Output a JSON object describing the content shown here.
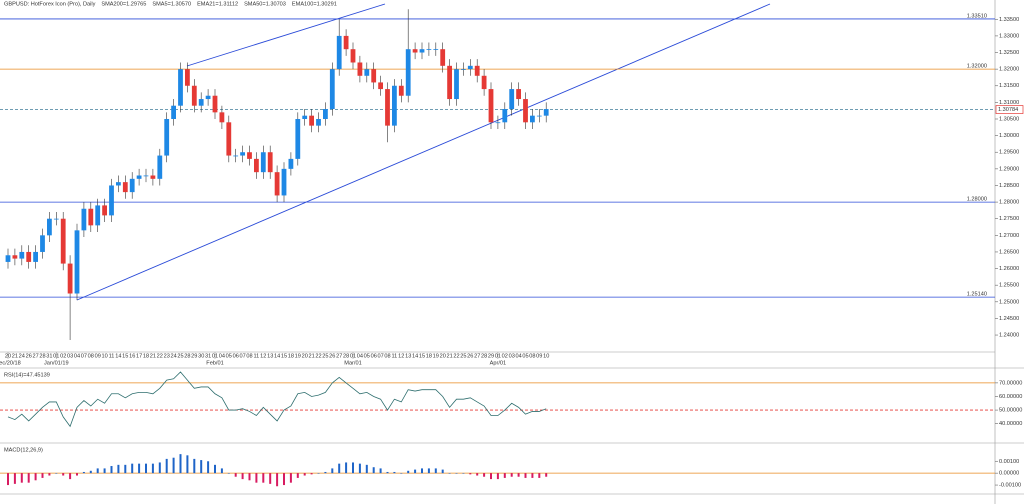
{
  "chart_data": [
    {
      "type": "candlestick",
      "title": "GBPUSD: HotForex Icon (Pro), Daily",
      "header_items": [
        {
          "text": "SMA200=1.29765",
          "color": "#e0245e"
        },
        {
          "text": "SMA5=1.30570",
          "color": "#333333"
        },
        {
          "text": "EMA21=1.31112",
          "color": "#3aa7d8"
        },
        {
          "text": "SMA50=1.30703",
          "color": "#e8891f"
        },
        {
          "text": "EMA100=1.30291",
          "color": "#2f4f2f"
        }
      ],
      "categories": [
        "20",
        "21",
        "24",
        "26",
        "27",
        "28",
        "31",
        "01",
        "02",
        "03",
        "04",
        "07",
        "08",
        "09",
        "10",
        "11",
        "14",
        "15",
        "16",
        "17",
        "18",
        "21",
        "22",
        "23",
        "24",
        "25",
        "28",
        "29",
        "30",
        "31",
        "01",
        "04",
        "05",
        "06",
        "07",
        "08",
        "11",
        "12",
        "13",
        "14",
        "15",
        "18",
        "19",
        "20",
        "21",
        "22",
        "25",
        "26",
        "27",
        "28",
        "01",
        "04",
        "05",
        "06",
        "07",
        "08",
        "11",
        "12",
        "13",
        "14",
        "15",
        "18",
        "19",
        "20",
        "21",
        "22",
        "25",
        "26",
        "27",
        "28",
        "29",
        "01",
        "02",
        "03",
        "04",
        "05",
        "08",
        "09",
        "10"
      ],
      "period_labels": [
        "Dec/20/18",
        null,
        null,
        null,
        null,
        null,
        null,
        "Jan/01/19",
        null,
        null,
        null,
        null,
        null,
        null,
        null,
        null,
        null,
        null,
        null,
        null,
        null,
        null,
        null,
        null,
        null,
        null,
        null,
        null,
        null,
        null,
        "Feb/01",
        null,
        null,
        null,
        null,
        null,
        null,
        null,
        null,
        null,
        null,
        null,
        null,
        null,
        null,
        null,
        null,
        null,
        null,
        null,
        "Mar/01",
        null,
        null,
        null,
        null,
        null,
        null,
        null,
        null,
        null,
        null,
        null,
        null,
        null,
        null,
        null,
        null,
        null,
        null,
        null,
        null,
        "Apr/01",
        null,
        null,
        null,
        null,
        null,
        null,
        null
      ],
      "open": [
        1.262,
        1.264,
        1.263,
        1.265,
        1.262,
        1.265,
        1.27,
        1.275,
        1.275,
        1.2615,
        1.2525,
        1.2715,
        1.278,
        1.273,
        1.279,
        1.276,
        1.285,
        1.286,
        1.283,
        1.287,
        1.288,
        1.288,
        1.287,
        1.294,
        1.305,
        1.309,
        1.32,
        1.315,
        1.309,
        1.311,
        1.312,
        1.307,
        1.304,
        1.294,
        1.294,
        1.295,
        1.293,
        1.289,
        1.295,
        1.289,
        1.282,
        1.29,
        1.293,
        1.305,
        1.306,
        1.303,
        1.305,
        1.308,
        1.32,
        1.33,
        1.326,
        1.322,
        1.318,
        1.32,
        1.316,
        1.314,
        1.303,
        1.315,
        1.312,
        1.326,
        1.325,
        1.326,
        1.326,
        1.326,
        1.321,
        1.311,
        1.32,
        1.32,
        1.321,
        1.318,
        1.314,
        1.304,
        1.304,
        1.308,
        1.314,
        1.311,
        1.304,
        1.306,
        1.306
      ],
      "high": [
        1.266,
        1.266,
        1.267,
        1.267,
        1.267,
        1.272,
        1.277,
        1.277,
        1.277,
        1.264,
        1.2735,
        1.28,
        1.28,
        1.281,
        1.281,
        1.287,
        1.288,
        1.288,
        1.289,
        1.29,
        1.29,
        1.29,
        1.296,
        1.307,
        1.311,
        1.322,
        1.322,
        1.317,
        1.313,
        1.314,
        1.314,
        1.309,
        1.306,
        1.296,
        1.297,
        1.297,
        1.295,
        1.297,
        1.297,
        1.291,
        1.292,
        1.295,
        1.307,
        1.308,
        1.308,
        1.307,
        1.31,
        1.322,
        1.335,
        1.332,
        1.328,
        1.324,
        1.322,
        1.322,
        1.318,
        1.316,
        1.317,
        1.317,
        1.338,
        1.328,
        1.328,
        1.328,
        1.328,
        1.328,
        1.323,
        1.322,
        1.322,
        1.323,
        1.323,
        1.32,
        1.316,
        1.306,
        1.31,
        1.316,
        1.316,
        1.313,
        1.308,
        1.308,
        1.31
      ],
      "low": [
        1.26,
        1.261,
        1.261,
        1.26,
        1.26,
        1.263,
        1.268,
        1.273,
        1.2595,
        1.2385,
        1.2505,
        1.2695,
        1.271,
        1.271,
        1.274,
        1.274,
        1.283,
        1.281,
        1.281,
        1.285,
        1.286,
        1.285,
        1.285,
        1.292,
        1.303,
        1.307,
        1.313,
        1.307,
        1.307,
        1.309,
        1.305,
        1.302,
        1.292,
        1.292,
        1.292,
        1.291,
        1.287,
        1.287,
        1.287,
        1.28,
        1.28,
        1.288,
        1.291,
        1.303,
        1.301,
        1.301,
        1.303,
        1.306,
        1.318,
        1.324,
        1.32,
        1.316,
        1.316,
        1.314,
        1.312,
        1.298,
        1.301,
        1.31,
        1.31,
        1.323,
        1.323,
        1.324,
        1.324,
        1.319,
        1.309,
        1.309,
        1.318,
        1.318,
        1.316,
        1.312,
        1.302,
        1.302,
        1.302,
        1.306,
        1.309,
        1.302,
        1.302,
        1.304,
        1.304
      ],
      "close": [
        1.264,
        1.263,
        1.265,
        1.262,
        1.265,
        1.27,
        1.275,
        1.275,
        1.2615,
        1.2525,
        1.2715,
        1.278,
        1.273,
        1.279,
        1.276,
        1.285,
        1.286,
        1.283,
        1.287,
        1.288,
        1.288,
        1.287,
        1.294,
        1.305,
        1.309,
        1.32,
        1.315,
        1.309,
        1.311,
        1.312,
        1.307,
        1.304,
        1.294,
        1.294,
        1.295,
        1.293,
        1.289,
        1.295,
        1.289,
        1.282,
        1.29,
        1.293,
        1.305,
        1.306,
        1.303,
        1.305,
        1.308,
        1.32,
        1.33,
        1.326,
        1.322,
        1.318,
        1.32,
        1.316,
        1.314,
        1.303,
        1.315,
        1.312,
        1.326,
        1.325,
        1.326,
        1.326,
        1.326,
        1.321,
        1.311,
        1.32,
        1.32,
        1.321,
        1.318,
        1.314,
        1.304,
        1.304,
        1.308,
        1.314,
        1.311,
        1.304,
        1.306,
        1.306,
        1.308
      ],
      "up_color": "#1e88e5",
      "down_color": "#e53935",
      "ylim": [
        1.2355,
        1.3405
      ],
      "yticks": [
        {
          "value": 1.24,
          "label": "1.24000"
        },
        {
          "value": 1.245,
          "label": "1.24500"
        },
        {
          "value": 1.25,
          "label": "1.25000"
        },
        {
          "value": 1.255,
          "label": "1.25500"
        },
        {
          "value": 1.26,
          "label": "1.26000"
        },
        {
          "value": 1.265,
          "label": "1.26500"
        },
        {
          "value": 1.27,
          "label": "1.27000"
        },
        {
          "value": 1.275,
          "label": "1.27500"
        },
        {
          "value": 1.28,
          "label": "1.28000"
        },
        {
          "value": 1.285,
          "label": "1.28500"
        },
        {
          "value": 1.29,
          "label": "1.29000"
        },
        {
          "value": 1.295,
          "label": "1.29500"
        },
        {
          "value": 1.3,
          "label": "1.30000"
        },
        {
          "value": 1.305,
          "label": "1.30500"
        },
        {
          "value": 1.31,
          "label": "1.31000"
        },
        {
          "value": 1.315,
          "label": "1.31500"
        },
        {
          "value": 1.32,
          "label": "1.32000"
        },
        {
          "value": 1.325,
          "label": "1.32500"
        },
        {
          "value": 1.33,
          "label": "1.33000"
        },
        {
          "value": 1.335,
          "label": "1.33500"
        }
      ],
      "levels": [
        {
          "value": 1.3351,
          "label": "1.33510",
          "color": "#2b4bd8",
          "style": "solid"
        },
        {
          "value": 1.32,
          "label": "1.32000",
          "color": "#e8891f",
          "style": "solid"
        },
        {
          "value": 1.30784,
          "label": "1.30784",
          "color": "#5a8fa8",
          "style": "dashed"
        },
        {
          "value": 1.28,
          "label": "1.28000",
          "color": "#2b4bd8",
          "style": "solid"
        },
        {
          "value": 1.2514,
          "label": "1.25140",
          "color": "#2b4bd8",
          "style": "solid"
        }
      ]
    },
    {
      "type": "line",
      "title": "RSI(14)=47.45139",
      "values": [
        45,
        43,
        47,
        42,
        47,
        52,
        56,
        56,
        45,
        38,
        52,
        57,
        53,
        58,
        55,
        62,
        62,
        59,
        62,
        63,
        63,
        62,
        66,
        72,
        73,
        78,
        72,
        66,
        67,
        67,
        62,
        59,
        50,
        50,
        51,
        49,
        46,
        52,
        47,
        42,
        50,
        53,
        62,
        63,
        60,
        61,
        63,
        70,
        74,
        70,
        66,
        62,
        63,
        60,
        58,
        50,
        58,
        56,
        65,
        64,
        65,
        65,
        65,
        60,
        52,
        58,
        58,
        59,
        56,
        53,
        46,
        46,
        50,
        55,
        52,
        47,
        49,
        49,
        51
      ],
      "color": "#2f6f6f",
      "ylim": [
        28,
        78
      ],
      "yticks": [
        {
          "value": 40,
          "label": "40.00000"
        },
        {
          "value": 50,
          "label": "50.00000"
        },
        {
          "value": 60,
          "label": "60.00000"
        },
        {
          "value": 70,
          "label": "70.00000"
        }
      ],
      "levels": [
        {
          "value": 70,
          "color": "#e8891f",
          "style": "solid"
        },
        {
          "value": 50,
          "color": "#e53935",
          "style": "dashed"
        }
      ]
    },
    {
      "type": "bar",
      "title": "MACD(12,26,9)",
      "values": [
        -0.001,
        -0.0009,
        -0.0008,
        -0.0008,
        -0.0006,
        -0.0004,
        -0.0002,
        0.0,
        -0.0002,
        -0.0005,
        -0.0002,
        0.0001,
        0.0002,
        0.0004,
        0.0004,
        0.0006,
        0.0007,
        0.0007,
        0.0008,
        0.0008,
        0.0008,
        0.0008,
        0.0009,
        0.0012,
        0.0013,
        0.0016,
        0.0015,
        0.0012,
        0.0011,
        0.001,
        0.0007,
        0.0004,
        0.0,
        -0.0003,
        -0.0005,
        -0.0006,
        -0.0008,
        -0.0008,
        -0.0009,
        -0.0011,
        -0.001,
        -0.0008,
        -0.0004,
        -0.0002,
        -0.0001,
        0.0,
        0.0001,
        0.0004,
        0.0008,
        0.0009,
        0.0009,
        0.0008,
        0.0007,
        0.0005,
        0.0004,
        0.0001,
        0.0001,
        0.0,
        0.0002,
        0.0003,
        0.0004,
        0.0004,
        0.0004,
        0.0003,
        0.0,
        0.0,
        0.0,
        -0.0001,
        -0.0002,
        -0.0003,
        -0.0005,
        -0.0005,
        -0.0004,
        -0.0003,
        -0.0003,
        -0.0004,
        -0.0004,
        -0.0004,
        -0.0003
      ],
      "up_color": "#1e64c8",
      "down_color": "#d81b60",
      "ylim": [
        -0.0015,
        0.0022
      ],
      "yticks": [
        {
          "value": -0.001,
          "label": "-0.00100"
        },
        {
          "value": 0,
          "label": "0.00000"
        },
        {
          "value": 0.001,
          "label": "0.00100"
        }
      ],
      "levels": [
        {
          "value": 0,
          "color": "#e8891f",
          "style": "solid"
        }
      ]
    }
  ]
}
